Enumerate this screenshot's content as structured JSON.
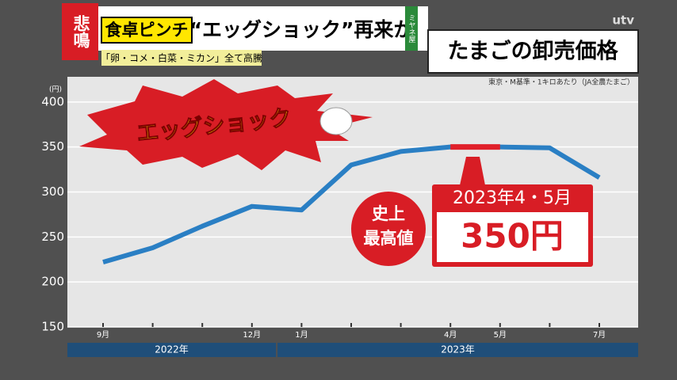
{
  "header": {
    "badge": "悲鳴",
    "tag": "食卓ピンチ",
    "headline": "“エッグショック”再来か",
    "program": "ミヤネ屋",
    "subline": "「卵・コメ・白菜・ミカン」全て高騰",
    "logo": "utv"
  },
  "chart_data": {
    "type": "line",
    "title": "たまごの卸売価格",
    "source": "東京・M基準・1キロあたり（JA全農たまご）",
    "y_unit": "(円)",
    "categories": [
      "9月",
      null,
      null,
      "12月",
      "1月",
      null,
      null,
      "4月",
      "5月",
      null,
      "7月"
    ],
    "values": [
      222,
      238,
      262,
      284,
      280,
      330,
      345,
      350,
      350,
      349,
      316
    ],
    "color": "#2a7fc4",
    "highlight_color": "#e0202a",
    "year_labels": [
      "2022年",
      "2023年"
    ],
    "ylim": [
      150,
      428
    ],
    "yticks": [
      150,
      200,
      250,
      300,
      350,
      400
    ],
    "grid": true,
    "annotations": {
      "burst": "エッグショック",
      "record": [
        "史上",
        "最高値"
      ],
      "period": "2023年4・5月",
      "price": "350円"
    }
  }
}
